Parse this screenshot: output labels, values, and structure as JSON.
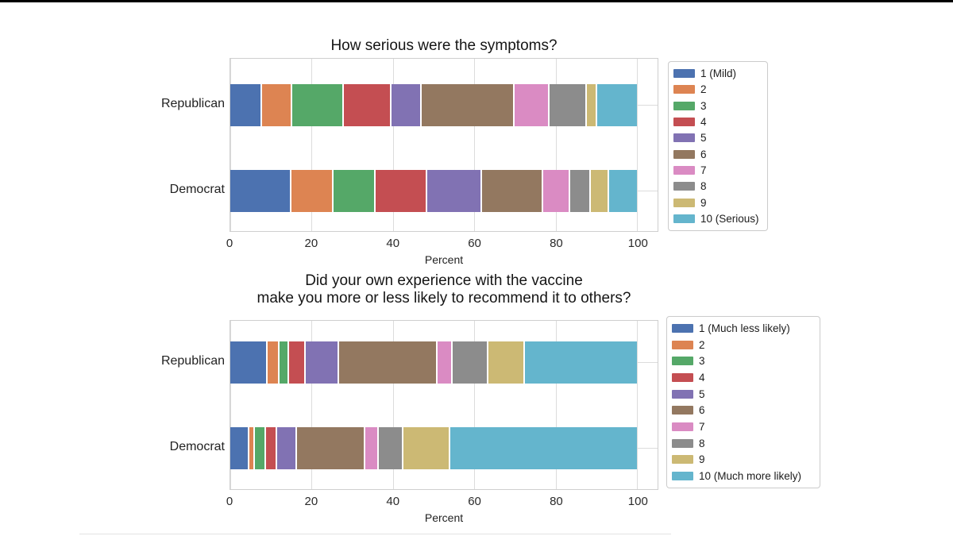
{
  "page": {
    "background": "#ffffff",
    "top_rule_color": "#000000",
    "grid_color": "#dcdcdc",
    "plot_border_color": "#cfcfcf"
  },
  "axis": {
    "xlabel": "Percent",
    "xticks": [
      0,
      20,
      40,
      60,
      80,
      100
    ],
    "xmax_display": 105
  },
  "chart_data": [
    {
      "type": "bar",
      "orientation": "horizontal",
      "stacked": true,
      "grid": true,
      "legend_position": "right-outside",
      "title_lines": [
        "How serious were the symptoms?"
      ],
      "xlabel": "Percent",
      "xlim": [
        0,
        105
      ],
      "xticks": [
        0,
        20,
        40,
        60,
        80,
        100
      ],
      "categories": [
        "Republican",
        "Democrat"
      ],
      "series": [
        {
          "name": "1 (Mild)",
          "color": "#4C72B0",
          "values": [
            7.4,
            14.6
          ]
        },
        {
          "name": "2",
          "color": "#DD8452",
          "values": [
            7.5,
            10.4
          ]
        },
        {
          "name": "3",
          "color": "#55A868",
          "values": [
            12.7,
            10.4
          ]
        },
        {
          "name": "4",
          "color": "#C44E52",
          "values": [
            11.6,
            12.7
          ]
        },
        {
          "name": "5",
          "color": "#8172B3",
          "values": [
            7.4,
            13.4
          ]
        },
        {
          "name": "6",
          "color": "#937860",
          "values": [
            22.8,
            15.1
          ]
        },
        {
          "name": "7",
          "color": "#DA8BC3",
          "values": [
            8.7,
            6.5
          ]
        },
        {
          "name": "8",
          "color": "#8C8C8C",
          "values": [
            9.1,
            5.2
          ]
        },
        {
          "name": "9",
          "color": "#CCB974",
          "values": [
            2.6,
            4.4
          ]
        },
        {
          "name": "10 (Serious)",
          "color": "#64B5CD",
          "values": [
            10.2,
            7.3
          ]
        }
      ]
    },
    {
      "type": "bar",
      "orientation": "horizontal",
      "stacked": true,
      "grid": true,
      "legend_position": "right-outside",
      "title_lines": [
        "Did your own experience with the vaccine",
        "make you more or less likely to recommend it to others?"
      ],
      "xlabel": "Percent",
      "xlim": [
        0,
        105
      ],
      "xticks": [
        0,
        20,
        40,
        60,
        80,
        100
      ],
      "categories": [
        "Republican",
        "Democrat"
      ],
      "series": [
        {
          "name": "1 (Much less likely)",
          "color": "#4C72B0",
          "values": [
            8.8,
            4.2
          ]
        },
        {
          "name": "2",
          "color": "#DD8452",
          "values": [
            2.9,
            1.4
          ]
        },
        {
          "name": "3",
          "color": "#55A868",
          "values": [
            2.3,
            2.7
          ]
        },
        {
          "name": "4",
          "color": "#C44E52",
          "values": [
            4.2,
            2.8
          ]
        },
        {
          "name": "5",
          "color": "#8172B3",
          "values": [
            8.2,
            5.0
          ]
        },
        {
          "name": "6",
          "color": "#937860",
          "values": [
            24.1,
            16.6
          ]
        },
        {
          "name": "7",
          "color": "#DA8BC3",
          "values": [
            3.8,
            3.4
          ]
        },
        {
          "name": "8",
          "color": "#8C8C8C",
          "values": [
            8.7,
            6.1
          ]
        },
        {
          "name": "9",
          "color": "#CCB974",
          "values": [
            9.0,
            11.4
          ]
        },
        {
          "name": "10 (Much more likely)",
          "color": "#64B5CD",
          "values": [
            28.0,
            46.4
          ]
        }
      ]
    }
  ]
}
